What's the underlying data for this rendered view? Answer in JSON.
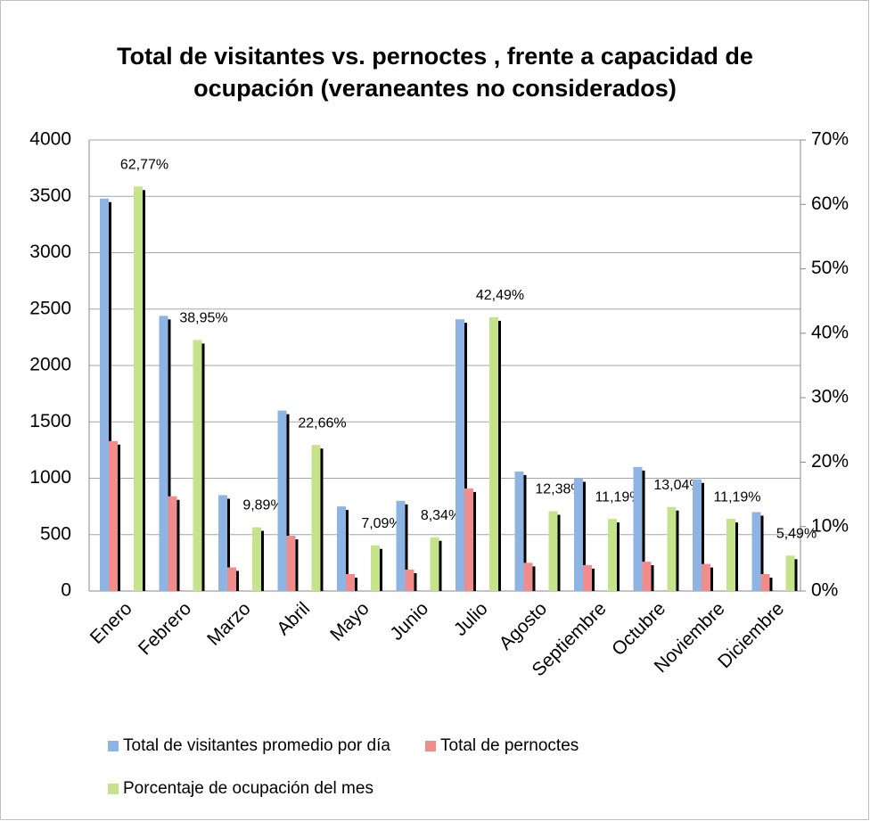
{
  "chart_data": {
    "type": "bar",
    "title": [
      "Total de visitantes vs. pernoctes , frente a capacidad de",
      "ocupación (veraneantes no considerados)"
    ],
    "categories": [
      "Enero",
      "Febrero",
      "Marzo",
      "Abril",
      "Mayo",
      "Junio",
      "Julio",
      "Agosto",
      "Septiembre",
      "Octubre",
      "Noviembre",
      "Diciembre"
    ],
    "series": [
      {
        "name": "Total de visitantes promedio por día",
        "color": "#8db4e2",
        "values": [
          3480,
          2440,
          850,
          1600,
          750,
          800,
          2410,
          1060,
          1000,
          1100,
          990,
          700
        ]
      },
      {
        "name": "Total de pernoctes",
        "color": "#f08c8c",
        "values": [
          1330,
          840,
          210,
          490,
          150,
          190,
          910,
          250,
          230,
          260,
          240,
          150
        ]
      },
      {
        "name": "Porcentaje de ocupación del mes",
        "color": "#c4e38a",
        "axis": "y2",
        "values": [
          62.77,
          38.95,
          9.89,
          22.66,
          7.09,
          8.34,
          42.49,
          12.38,
          11.19,
          13.04,
          11.19,
          5.49
        ],
        "value_labels": [
          "62,77%",
          "38,95%",
          "9,89%",
          "22,66%",
          "7,09%",
          "8,34%",
          "42,49%",
          "12,38%",
          "11,19%",
          "13,04%",
          "11,19%",
          "5,49%"
        ]
      }
    ],
    "ylim": [
      0,
      4000
    ],
    "yticks": [
      0,
      500,
      1000,
      1500,
      2000,
      2500,
      3000,
      3500,
      4000
    ],
    "y2lim": [
      0,
      70
    ],
    "y2ticks": [
      {
        "value": 0,
        "label": "0%"
      },
      {
        "value": 10,
        "label": "10%"
      },
      {
        "value": 20,
        "label": "20%"
      },
      {
        "value": 30,
        "label": "30%"
      },
      {
        "value": 40,
        "label": "40%"
      },
      {
        "value": 50,
        "label": "50%"
      },
      {
        "value": 60,
        "label": "60%"
      },
      {
        "value": 70,
        "label": "70%"
      }
    ],
    "grid": true
  }
}
